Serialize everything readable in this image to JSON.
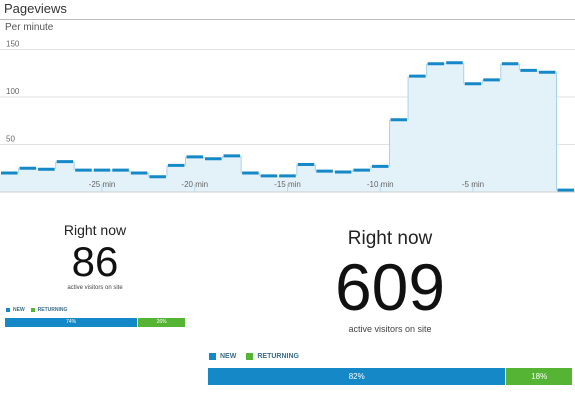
{
  "header": {
    "title": "Pageviews",
    "subtitle": "Per minute"
  },
  "colors": {
    "new": "#1588c7",
    "returning": "#56b435",
    "area": "#e3f1f9",
    "line": "#1588c7"
  },
  "chart_data": {
    "type": "area",
    "unit_note": "pageviews per minute, one step per minute",
    "x": [
      -30,
      -29,
      -28,
      -27,
      -26,
      -25,
      -24,
      -23,
      -22,
      -21,
      -20,
      -19,
      -18,
      -17,
      -16,
      -15,
      -14,
      -13,
      -12,
      -11,
      -10,
      -9,
      -8,
      -7,
      -6,
      -5,
      -4,
      -3,
      -2,
      -1,
      0
    ],
    "values": [
      20,
      25,
      24,
      32,
      23,
      23,
      23,
      20,
      16,
      28,
      37,
      35,
      38,
      20,
      17,
      17,
      29,
      22,
      21,
      23,
      27,
      76,
      122,
      135,
      136,
      114,
      118,
      135,
      128,
      126,
      2
    ],
    "ylim": [
      0,
      160
    ],
    "ytick_values": [
      50,
      100,
      150
    ],
    "ytick_labels": [
      "50",
      "100",
      "150"
    ],
    "xtick_values": [
      -25,
      -20,
      -15,
      -10,
      -5
    ],
    "xtick_labels": [
      "-25 min",
      "-20 min",
      "-15 min",
      "-10 min",
      "-5 min"
    ],
    "grid": true,
    "legend": "none"
  },
  "right_now_small": {
    "label": "Right now",
    "count": "86",
    "sublabel": "active visitors on site",
    "legend_new": "NEW",
    "legend_returning": "RETURNING",
    "new_pct": 74,
    "returning_pct": 26,
    "new_label": "74%",
    "returning_label": "26%"
  },
  "right_now_big": {
    "label": "Right now",
    "count": "609",
    "sublabel": "active visitors on site",
    "legend_new": "NEW",
    "legend_returning": "RETURNING",
    "new_pct": 82,
    "returning_pct": 18,
    "new_label": "82%",
    "returning_label": "18%"
  }
}
